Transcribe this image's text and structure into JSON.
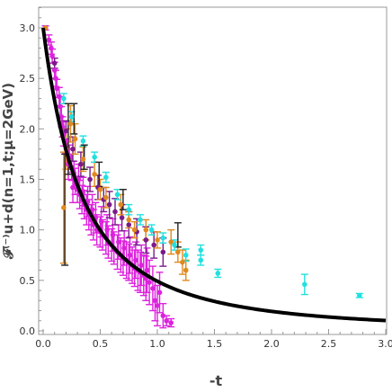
{
  "chart_data": {
    "type": "scatter",
    "xlabel": "-t",
    "ylabel": "𝓕⁽⁻⁾u+d(n=1,t;μ=2GeV)",
    "xlim": [
      0,
      3.0
    ],
    "ylim": [
      0,
      3.2
    ],
    "x_ticks": [
      "0.0",
      "0.5",
      "1.0",
      "1.5",
      "2.0",
      "2.5",
      "3.0"
    ],
    "y_ticks": [
      "0.0",
      "0.5",
      "1.0",
      "1.5",
      "2.0",
      "2.5",
      "3.0"
    ],
    "grid": false,
    "legend": "none",
    "colors": {
      "curve": "#000000",
      "magenta": "#dd22dd",
      "purple": "#7a1a8a",
      "orange": "#e08a1e",
      "cyan": "#22e0e0",
      "errorbar_black": "#222222",
      "frame": "#999999"
    },
    "curve": {
      "form": "dipole",
      "F0": 3.0,
      "M2": 0.68
    },
    "series": [
      {
        "color": "magenta",
        "points": [
          {
            "x": 0.02,
            "y": 3.0,
            "e": 0.02
          },
          {
            "x": 0.05,
            "y": 2.88,
            "e": 0.05
          },
          {
            "x": 0.07,
            "y": 2.8,
            "e": 0.06
          },
          {
            "x": 0.08,
            "y": 2.72,
            "e": 0.07
          },
          {
            "x": 0.1,
            "y": 2.58,
            "e": 0.08
          },
          {
            "x": 0.11,
            "y": 2.5,
            "e": 0.08
          },
          {
            "x": 0.12,
            "y": 2.4,
            "e": 0.09
          },
          {
            "x": 0.14,
            "y": 2.32,
            "e": 0.09
          },
          {
            "x": 0.15,
            "y": 2.22,
            "e": 0.1
          },
          {
            "x": 0.16,
            "y": 2.12,
            "e": 0.1
          },
          {
            "x": 0.17,
            "y": 2.02,
            "e": 0.1
          },
          {
            "x": 0.18,
            "y": 1.95,
            "e": 0.12
          },
          {
            "x": 0.2,
            "y": 1.88,
            "e": 0.12
          },
          {
            "x": 0.21,
            "y": 1.78,
            "e": 0.12
          },
          {
            "x": 0.23,
            "y": 1.72,
            "e": 0.12
          },
          {
            "x": 0.25,
            "y": 1.62,
            "e": 0.13
          },
          {
            "x": 0.27,
            "y": 1.55,
            "e": 0.13
          },
          {
            "x": 0.28,
            "y": 1.48,
            "e": 0.13
          },
          {
            "x": 0.3,
            "y": 1.4,
            "e": 0.13
          },
          {
            "x": 0.32,
            "y": 1.35,
            "e": 0.14
          },
          {
            "x": 0.34,
            "y": 1.3,
            "e": 0.14
          },
          {
            "x": 0.36,
            "y": 1.25,
            "e": 0.14
          },
          {
            "x": 0.38,
            "y": 1.2,
            "e": 0.15
          },
          {
            "x": 0.4,
            "y": 1.15,
            "e": 0.15
          },
          {
            "x": 0.42,
            "y": 1.1,
            "e": 0.15
          },
          {
            "x": 0.44,
            "y": 1.05,
            "e": 0.15
          },
          {
            "x": 0.47,
            "y": 1.0,
            "e": 0.15
          },
          {
            "x": 0.5,
            "y": 0.98,
            "e": 0.15
          },
          {
            "x": 0.52,
            "y": 0.95,
            "e": 0.15
          },
          {
            "x": 0.55,
            "y": 0.92,
            "e": 0.16
          },
          {
            "x": 0.57,
            "y": 0.88,
            "e": 0.16
          },
          {
            "x": 0.6,
            "y": 0.85,
            "e": 0.16
          },
          {
            "x": 0.62,
            "y": 0.82,
            "e": 0.16
          },
          {
            "x": 0.65,
            "y": 0.78,
            "e": 0.17
          },
          {
            "x": 0.68,
            "y": 0.75,
            "e": 0.17
          },
          {
            "x": 0.7,
            "y": 0.72,
            "e": 0.17
          },
          {
            "x": 0.73,
            "y": 0.7,
            "e": 0.18
          },
          {
            "x": 0.75,
            "y": 0.68,
            "e": 0.18
          },
          {
            "x": 0.78,
            "y": 0.65,
            "e": 0.18
          },
          {
            "x": 0.8,
            "y": 0.62,
            "e": 0.18
          },
          {
            "x": 0.83,
            "y": 0.6,
            "e": 0.2
          },
          {
            "x": 0.85,
            "y": 0.58,
            "e": 0.2
          },
          {
            "x": 0.88,
            "y": 0.55,
            "e": 0.2
          },
          {
            "x": 0.9,
            "y": 0.52,
            "e": 0.22
          },
          {
            "x": 0.93,
            "y": 0.48,
            "e": 0.22
          },
          {
            "x": 0.96,
            "y": 0.42,
            "e": 0.22
          },
          {
            "x": 0.98,
            "y": 0.3,
            "e": 0.2
          },
          {
            "x": 1.0,
            "y": 0.25,
            "e": 0.2
          },
          {
            "x": 1.02,
            "y": 0.38,
            "e": 0.2
          },
          {
            "x": 1.05,
            "y": 0.15,
            "e": 0.12
          },
          {
            "x": 1.08,
            "y": 0.1,
            "e": 0.05
          },
          {
            "x": 1.12,
            "y": 0.08,
            "e": 0.04
          },
          {
            "x": 0.22,
            "y": 1.65,
            "e": 0.15
          },
          {
            "x": 0.26,
            "y": 1.42,
            "e": 0.15
          },
          {
            "x": 0.31,
            "y": 1.5,
            "e": 0.15
          },
          {
            "x": 0.35,
            "y": 1.38,
            "e": 0.14
          },
          {
            "x": 0.39,
            "y": 1.28,
            "e": 0.15
          },
          {
            "x": 0.43,
            "y": 1.2,
            "e": 0.15
          },
          {
            "x": 0.46,
            "y": 1.12,
            "e": 0.15
          },
          {
            "x": 0.51,
            "y": 1.08,
            "e": 0.15
          },
          {
            "x": 0.56,
            "y": 1.0,
            "e": 0.15
          },
          {
            "x": 0.61,
            "y": 0.95,
            "e": 0.16
          },
          {
            "x": 0.66,
            "y": 0.88,
            "e": 0.17
          },
          {
            "x": 0.71,
            "y": 0.82,
            "e": 0.17
          },
          {
            "x": 0.76,
            "y": 0.75,
            "e": 0.18
          },
          {
            "x": 0.81,
            "y": 0.7,
            "e": 0.18
          },
          {
            "x": 0.86,
            "y": 0.65,
            "e": 0.2
          },
          {
            "x": 0.91,
            "y": 0.6,
            "e": 0.22
          }
        ]
      },
      {
        "color": "purple",
        "points": [
          {
            "x": 0.1,
            "y": 2.65,
            "e": 0.05
          },
          {
            "x": 0.2,
            "y": 1.98,
            "e": 0.1
          },
          {
            "x": 0.26,
            "y": 1.8,
            "e": 0.12
          },
          {
            "x": 0.33,
            "y": 1.65,
            "e": 0.12
          },
          {
            "x": 0.41,
            "y": 1.5,
            "e": 0.12
          },
          {
            "x": 0.48,
            "y": 1.42,
            "e": 0.12
          },
          {
            "x": 0.53,
            "y": 1.3,
            "e": 0.12
          },
          {
            "x": 0.58,
            "y": 1.25,
            "e": 0.13
          },
          {
            "x": 0.63,
            "y": 1.18,
            "e": 0.13
          },
          {
            "x": 0.69,
            "y": 1.12,
            "e": 0.13
          },
          {
            "x": 0.75,
            "y": 1.05,
            "e": 0.13
          },
          {
            "x": 0.82,
            "y": 0.98,
            "e": 0.13
          },
          {
            "x": 0.9,
            "y": 0.9,
            "e": 0.13
          },
          {
            "x": 0.97,
            "y": 0.85,
            "e": 0.13
          },
          {
            "x": 1.05,
            "y": 0.78,
            "e": 0.14
          }
        ]
      },
      {
        "color": "orange",
        "points": [
          {
            "x": 0.02,
            "y": 3.0,
            "e": 0.0
          },
          {
            "x": 0.18,
            "y": 1.22,
            "e": 0.55
          },
          {
            "x": 0.2,
            "y": 1.8,
            "e": 0.2
          },
          {
            "x": 0.24,
            "y": 2.05,
            "e": 0.18
          },
          {
            "x": 0.28,
            "y": 1.9,
            "e": 0.15
          },
          {
            "x": 0.35,
            "y": 1.7,
            "e": 0.12
          },
          {
            "x": 0.45,
            "y": 1.55,
            "e": 0.12
          },
          {
            "x": 0.5,
            "y": 1.4,
            "e": 0.1
          },
          {
            "x": 0.55,
            "y": 1.32,
            "e": 0.1
          },
          {
            "x": 0.68,
            "y": 1.25,
            "e": 0.1
          },
          {
            "x": 0.75,
            "y": 1.1,
            "e": 0.08
          },
          {
            "x": 0.8,
            "y": 1.0,
            "e": 0.08
          },
          {
            "x": 0.9,
            "y": 1.0,
            "e": 0.1
          },
          {
            "x": 1.0,
            "y": 0.9,
            "e": 0.08
          },
          {
            "x": 1.12,
            "y": 0.88,
            "e": 0.12
          },
          {
            "x": 1.18,
            "y": 0.78,
            "e": 0.1
          },
          {
            "x": 1.22,
            "y": 0.68,
            "e": 0.12
          },
          {
            "x": 1.25,
            "y": 0.6,
            "e": 0.1
          }
        ]
      },
      {
        "color": "cyan",
        "points": [
          {
            "x": 0.18,
            "y": 2.3,
            "e": 0.05
          },
          {
            "x": 0.25,
            "y": 2.12,
            "e": 0.05
          },
          {
            "x": 0.35,
            "y": 1.88,
            "e": 0.05
          },
          {
            "x": 0.45,
            "y": 1.72,
            "e": 0.05
          },
          {
            "x": 0.55,
            "y": 1.52,
            "e": 0.05
          },
          {
            "x": 0.65,
            "y": 1.35,
            "e": 0.05
          },
          {
            "x": 0.75,
            "y": 1.2,
            "e": 0.05
          },
          {
            "x": 0.85,
            "y": 1.1,
            "e": 0.05
          },
          {
            "x": 0.95,
            "y": 1.0,
            "e": 0.05
          },
          {
            "x": 1.05,
            "y": 0.92,
            "e": 0.05
          },
          {
            "x": 1.15,
            "y": 0.85,
            "e": 0.05
          },
          {
            "x": 1.25,
            "y": 0.75,
            "e": 0.06
          },
          {
            "x": 1.38,
            "y": 0.7,
            "e": 0.05
          },
          {
            "x": 1.38,
            "y": 0.8,
            "e": 0.05
          },
          {
            "x": 1.53,
            "y": 0.57,
            "e": 0.04
          },
          {
            "x": 2.29,
            "y": 0.46,
            "e": 0.1
          },
          {
            "x": 2.77,
            "y": 0.35,
            "e": 0.02
          }
        ]
      },
      {
        "color": "errorbar_black",
        "points": [
          {
            "x": 0.19,
            "y": 1.2,
            "e": 0.55
          },
          {
            "x": 0.22,
            "y": 1.9,
            "e": 0.35
          },
          {
            "x": 0.27,
            "y": 2.1,
            "e": 0.15
          },
          {
            "x": 0.36,
            "y": 1.72,
            "e": 0.12
          },
          {
            "x": 0.49,
            "y": 1.55,
            "e": 0.12
          },
          {
            "x": 0.7,
            "y": 1.3,
            "e": 0.1
          },
          {
            "x": 1.18,
            "y": 0.95,
            "e": 0.12
          }
        ]
      }
    ]
  }
}
